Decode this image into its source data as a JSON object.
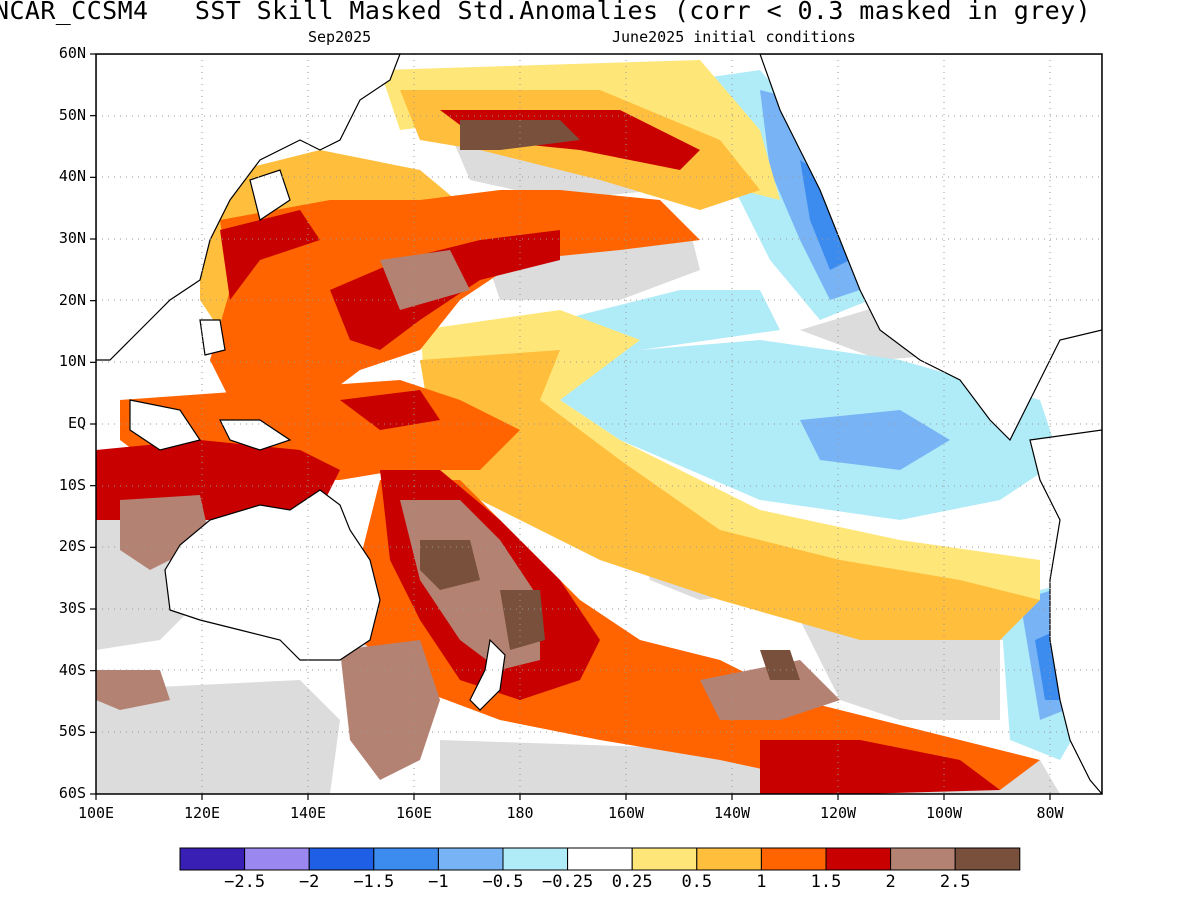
{
  "header": {
    "title": "NCAR_CCSM4   SST Skill Masked Std.Anomalies (corr < 0.3 masked in grey)",
    "target_month": "Sep2025",
    "initial_conditions": "June2025 initial conditions"
  },
  "map": {
    "lon_range": [
      100,
      290
    ],
    "lat_range": [
      -60,
      60
    ],
    "lat_labels": [
      "60N",
      "50N",
      "40N",
      "30N",
      "20N",
      "10N",
      "EQ",
      "10S",
      "20S",
      "30S",
      "40S",
      "50S",
      "60S"
    ],
    "lon_labels": [
      "100E",
      "120E",
      "140E",
      "160E",
      "180",
      "160W",
      "140W",
      "120W",
      "100W",
      "80W"
    ],
    "mask_color": "#dcdcdc",
    "land_color": "#ffffff"
  },
  "colorbar": {
    "colors": [
      "#3a1fb4",
      "#9b87f0",
      "#1f5fe6",
      "#3c8cf0",
      "#78b4f5",
      "#b0ecf8",
      "#ffffff",
      "#ffe678",
      "#ffbe3c",
      "#ff6400",
      "#c80000",
      "#b48273",
      "#78503c"
    ],
    "labels": [
      "−2.5",
      "−2",
      "−1.5",
      "−1",
      "−0.5",
      "−0.25",
      "0.25",
      "0.5",
      "1",
      "1.5",
      "2",
      "2.5"
    ]
  }
}
